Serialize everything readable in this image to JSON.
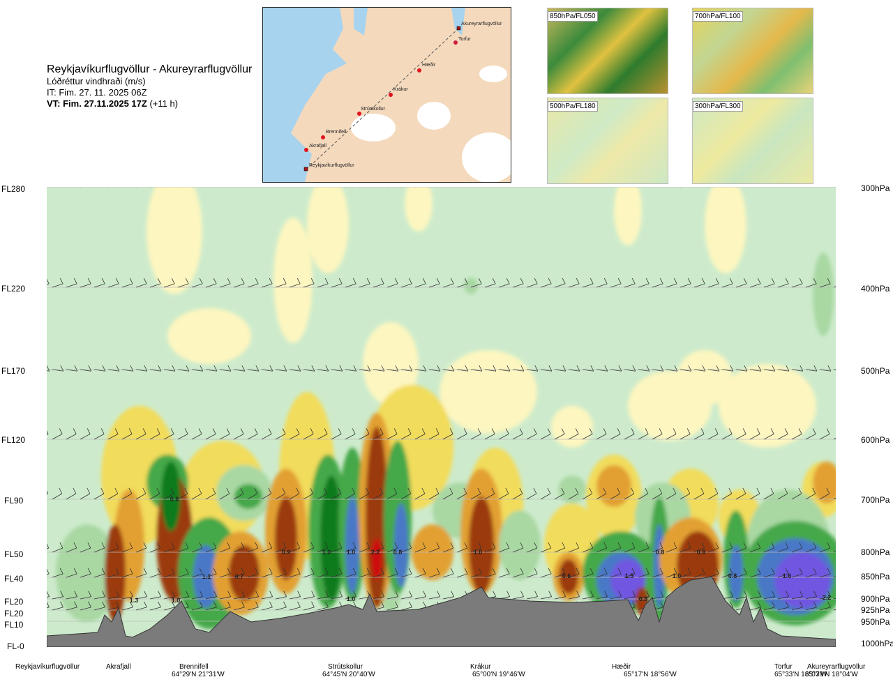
{
  "header": {
    "title": "Reykjavíkurflugvöllur - Akureyrarflugvöllur",
    "subtitle": "Lóðréttur vindhraði (m/s)",
    "init_time": "IT: Fim. 27. 11. 2025 06Z",
    "valid_time_bold": "VT: Fim. 27.11.2025 17Z",
    "valid_time_extra": "(+11 h)"
  },
  "map": {
    "labels": [
      "Akureyrarflugvöllur",
      "Torfur",
      "Hæðir",
      "Krákur",
      "Strútskollur",
      "Brennifell",
      "Akrafjall",
      "Reykjavíkurflugvöllur"
    ]
  },
  "thumbnails": [
    {
      "label": "850hPa/FL050"
    },
    {
      "label": "700hPa/FL100"
    },
    {
      "label": "500hPa/FL180"
    },
    {
      "label": "300hPa/FL300"
    }
  ],
  "chart_data": {
    "type": "heatmap",
    "title": "Lóðréttur vindhraði (m/s)",
    "left_axis_levels": [
      "FL280",
      "FL220",
      "FL170",
      "FL120",
      "FL90",
      "FL50",
      "FL40",
      "FL20",
      "FL20",
      "FL10",
      "FL-0"
    ],
    "right_axis_levels": [
      "300hPa",
      "400hPa",
      "500hPa",
      "600hPa",
      "700hPa",
      "800hPa",
      "850hPa",
      "900hPa",
      "925hPa",
      "950hPa",
      "1000hPa"
    ],
    "stations": [
      {
        "name": "Reykjavíkurflugvöllur",
        "coord": ""
      },
      {
        "name": "Akrafjall",
        "coord": ""
      },
      {
        "name": "Brennifell",
        "coord": "64°29'N 21°31'W"
      },
      {
        "name": "Strútskollur",
        "coord": "64°45'N 20°40'W"
      },
      {
        "name": "Krákur",
        "coord": "65°00'N 19°46'W"
      },
      {
        "name": "Hæðir",
        "coord": "65°17'N 18°56'W"
      },
      {
        "name": "Torfur",
        "coord": "65°33'N 18°07'W"
      },
      {
        "name": "Akureyrarflugvöllur",
        "coord": "65°39'N 18°04'W"
      }
    ],
    "contour_value_labels": [
      "0.6",
      "1.3",
      "1.0",
      "1.1",
      "0.7",
      "0.9",
      "1.0",
      "1.0",
      "2.2",
      "0.8",
      "1.0",
      "0.6",
      "1.5",
      "0.8",
      "1.0",
      "0.9",
      "0.8",
      "1.6",
      "2.2",
      "1.0",
      "0.8"
    ],
    "colors": {
      "background_weak": "#cdebcc",
      "light_yellow": "#fdf6c0",
      "yellow": "#f2dc5c",
      "orange": "#e2a033",
      "brown": "#9b3a10",
      "red": "#cc1111",
      "light_green": "#a9d8a3",
      "green": "#44a84a",
      "dark_green": "#0b7a1e",
      "blue": "#4a78c7",
      "violet": "#6f56e0",
      "terrain": "#7a7a7a"
    }
  }
}
